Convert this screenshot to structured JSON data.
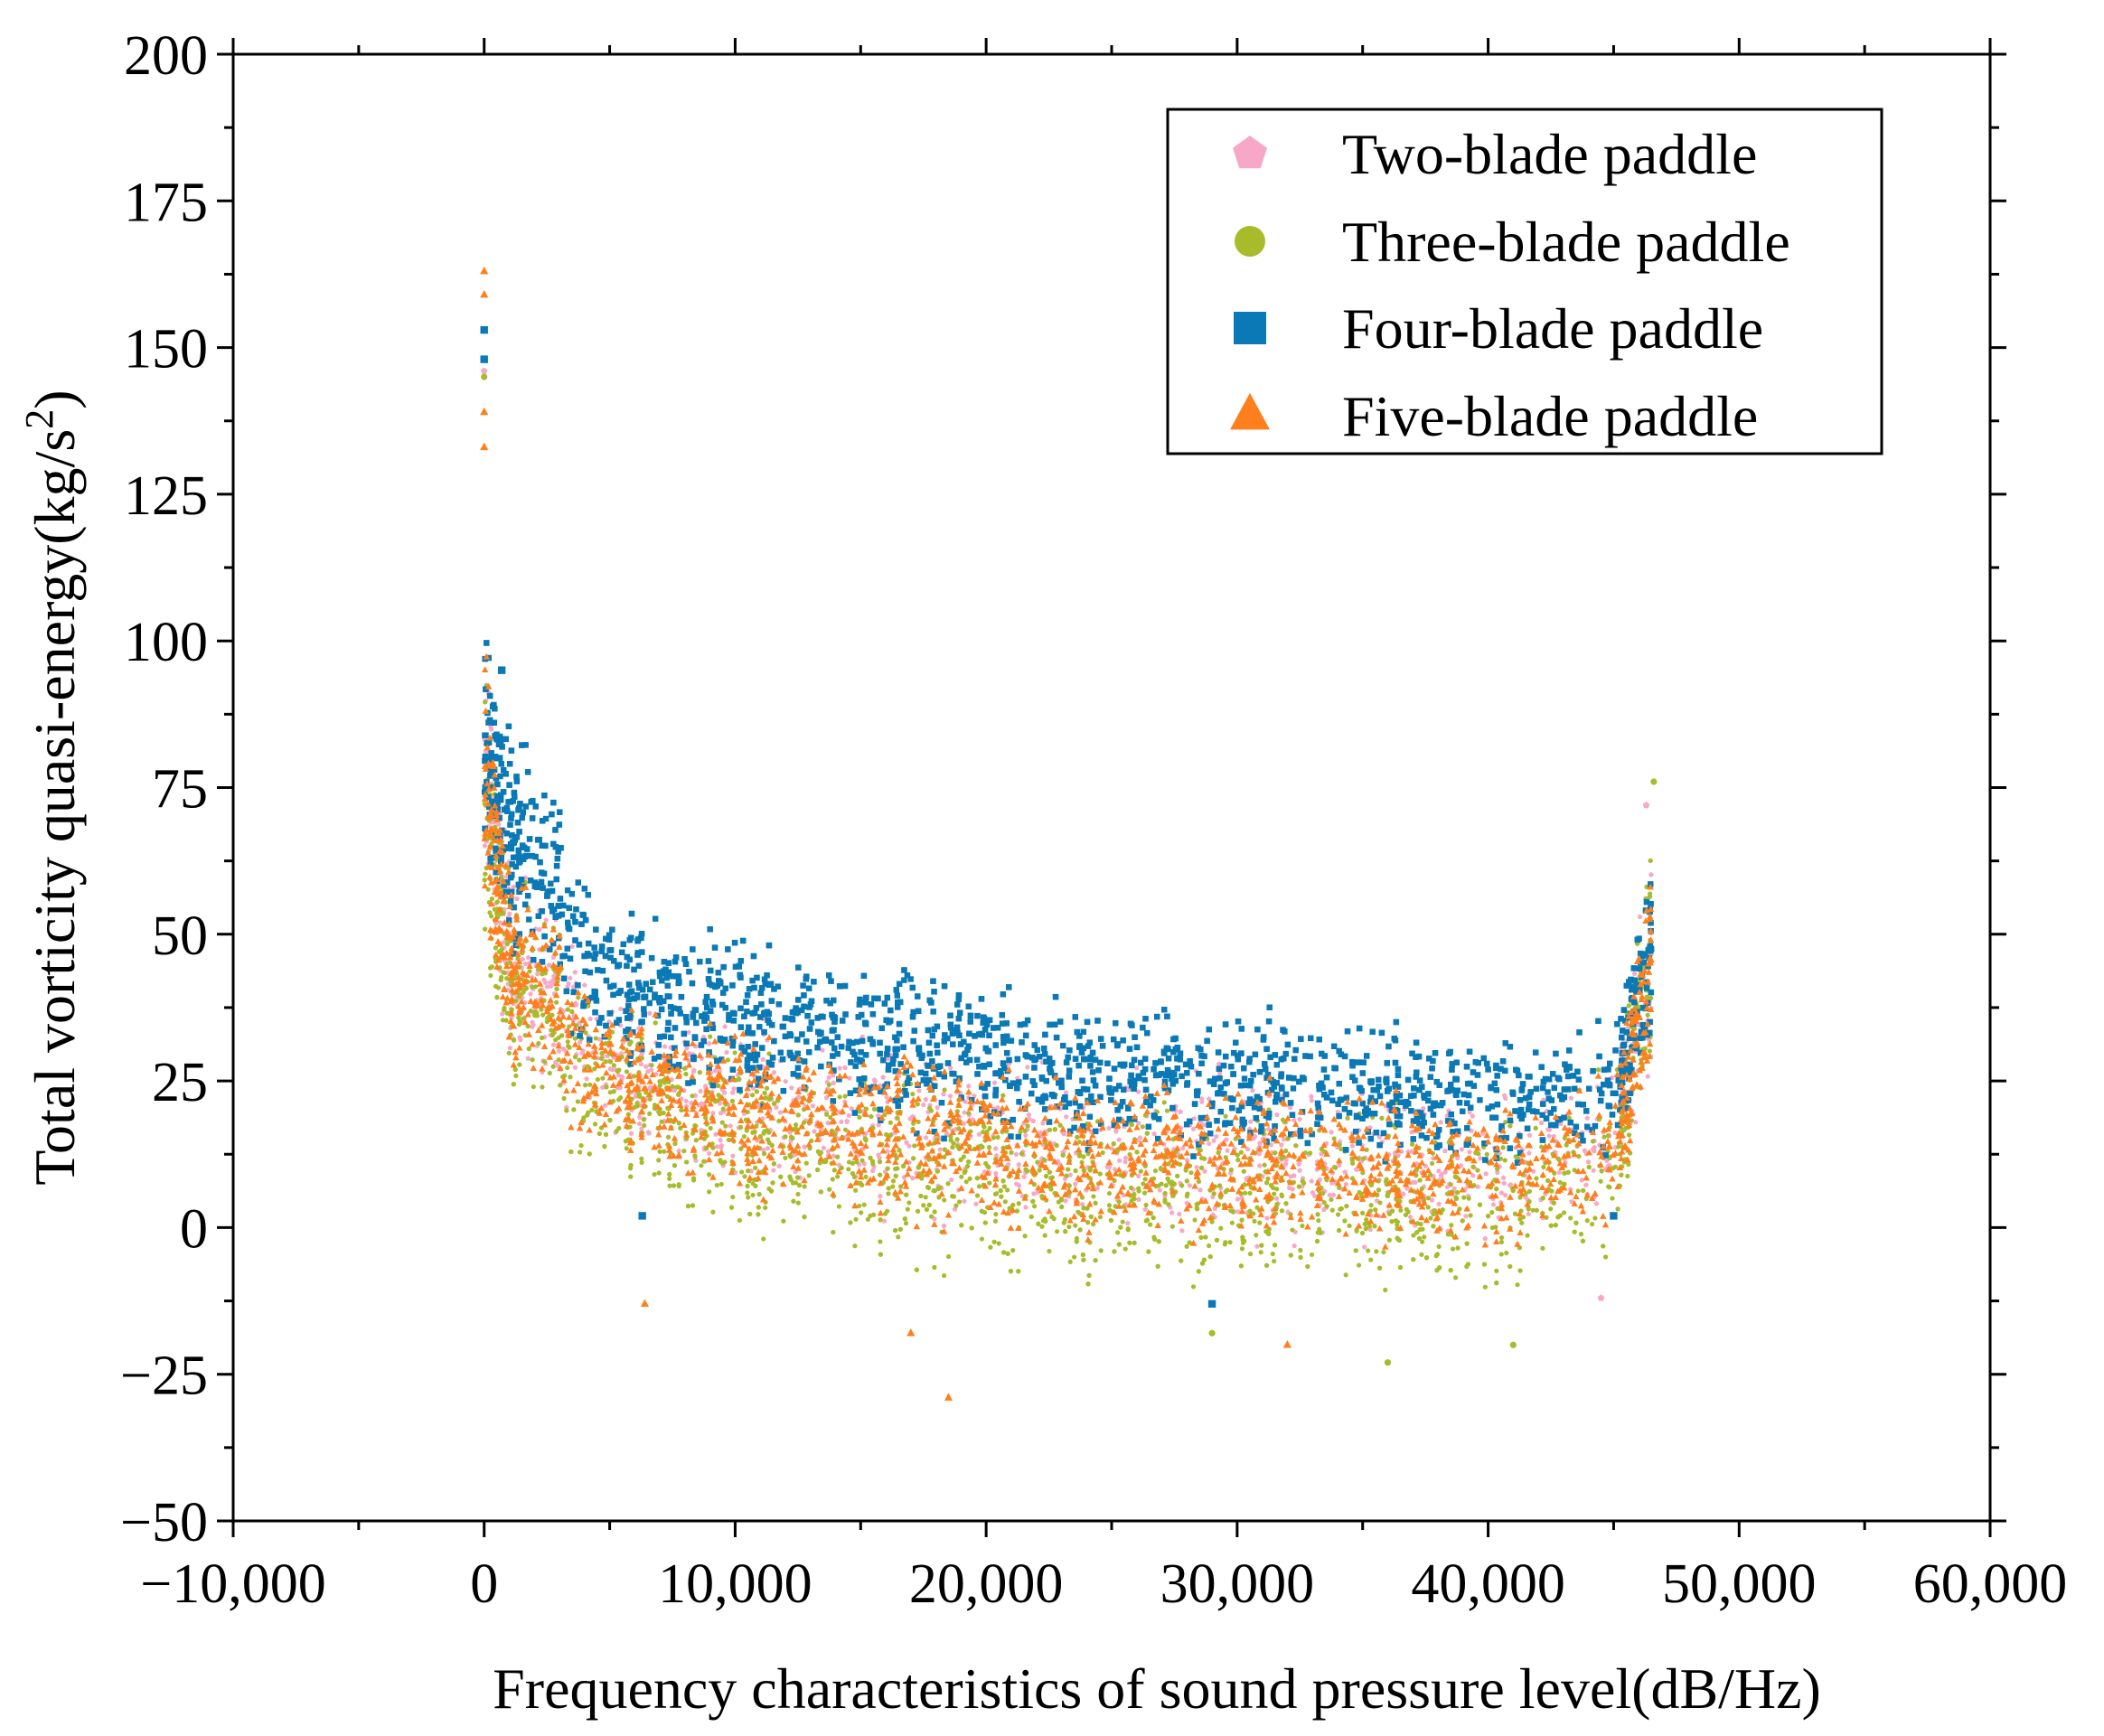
{
  "chart_data": {
    "type": "scatter",
    "title": "",
    "xlabel": "Frequency characteristics of sound pressure level(dB/Hz)",
    "ylabel_main": "Total vorticity quasi-energy(kg/s",
    "ylabel_sup": "2",
    "ylabel_close": ")",
    "xlim": [
      -10000,
      60000
    ],
    "ylim": [
      -50,
      200
    ],
    "x_ticks": [
      -10000,
      0,
      10000,
      20000,
      30000,
      40000,
      50000,
      60000
    ],
    "x_tick_labels": [
      "−10,000",
      "0",
      "10,000",
      "20,000",
      "30,000",
      "40,000",
      "50,000",
      "60,000"
    ],
    "y_ticks": [
      -50,
      -25,
      0,
      25,
      50,
      75,
      100,
      125,
      150,
      175,
      200
    ],
    "y_tick_labels": [
      "−50",
      "−25",
      "0",
      "25",
      "50",
      "75",
      "100",
      "125",
      "150",
      "175",
      "200"
    ],
    "legend_position": "top-right",
    "x_range_of_data": [
      0,
      46500
    ],
    "series": [
      {
        "name": "Two-blade paddle",
        "marker": "pentagon",
        "color": "#F7A8C8",
        "envelope": {
          "x": [
            0,
            1000,
            5000,
            10000,
            20000,
            30000,
            40000,
            45000,
            46500
          ],
          "y_upper": [
            110,
            70,
            45,
            40,
            33,
            29,
            28,
            33,
            72
          ],
          "y_lower": [
            45,
            20,
            8,
            3,
            -3,
            -6,
            -6,
            -4,
            20
          ]
        },
        "peak_points": [
          [
            0,
            146
          ],
          [
            46300,
            72
          ],
          [
            44500,
            -12
          ]
        ]
      },
      {
        "name": "Three-blade paddle",
        "marker": "circle",
        "color": "#A8BB2A",
        "envelope": {
          "x": [
            0,
            1000,
            5000,
            10000,
            20000,
            30000,
            40000,
            45000,
            46500
          ],
          "y_upper": [
            105,
            70,
            42,
            36,
            30,
            26,
            25,
            30,
            76
          ],
          "y_lower": [
            40,
            18,
            3,
            -5,
            -12,
            -15,
            -15,
            -8,
            20
          ]
        },
        "peak_points": [
          [
            0,
            145
          ],
          [
            46600,
            76
          ],
          [
            36000,
            -23
          ],
          [
            41000,
            -20
          ],
          [
            29000,
            -18
          ]
        ]
      },
      {
        "name": "Four-blade paddle",
        "marker": "square",
        "color": "#0A79B5",
        "envelope": {
          "x": [
            0,
            1000,
            5000,
            10000,
            20000,
            30000,
            40000,
            45000,
            46500
          ],
          "y_upper": [
            108,
            95,
            59,
            54,
            46,
            40,
            37,
            37,
            69
          ],
          "y_lower": [
            60,
            40,
            22,
            18,
            12,
            8,
            8,
            10,
            25
          ]
        },
        "peak_points": [
          [
            0,
            153
          ],
          [
            0,
            148
          ],
          [
            700,
            95
          ],
          [
            6300,
            2
          ],
          [
            29000,
            -13
          ],
          [
            45000,
            2
          ]
        ]
      },
      {
        "name": "Five-blade paddle",
        "marker": "triangle",
        "color": "#FF7F1E",
        "envelope": {
          "x": [
            0,
            1000,
            5000,
            10000,
            20000,
            30000,
            40000,
            45000,
            46500
          ],
          "y_upper": [
            110,
            68,
            42,
            38,
            32,
            28,
            26,
            28,
            70
          ],
          "y_lower": [
            48,
            22,
            8,
            2,
            -4,
            -7,
            -7,
            -2,
            20
          ]
        },
        "peak_points": [
          [
            0,
            163
          ],
          [
            0,
            159
          ],
          [
            0,
            139
          ],
          [
            0,
            133
          ],
          [
            18500,
            -29
          ],
          [
            6400,
            -13
          ],
          [
            17000,
            -18
          ],
          [
            32000,
            -20
          ]
        ]
      }
    ]
  }
}
